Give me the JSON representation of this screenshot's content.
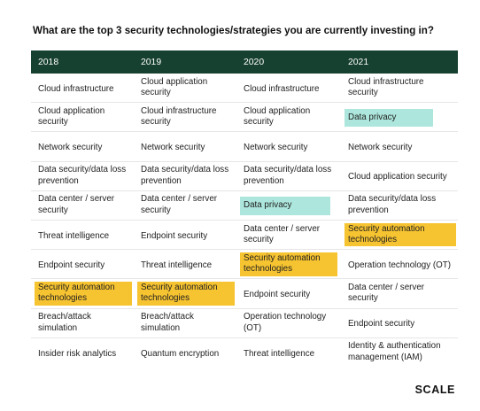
{
  "title": "What are the top 3 security technologies/strategies you are currently investing in?",
  "columns": [
    "2018",
    "2019",
    "2020",
    "2021"
  ],
  "rows": [
    [
      "Cloud infrastructure",
      "Cloud application security",
      "Cloud infrastructure",
      "Cloud infrastructure security"
    ],
    [
      "Cloud application security",
      "Cloud infrastructure security",
      "Cloud application security",
      "Data privacy"
    ],
    [
      "Network security",
      "Network security",
      "Network security",
      "Network security"
    ],
    [
      "Data security/data loss prevention",
      "Data security/data loss prevention",
      "Data security/data loss prevention",
      "Cloud application security"
    ],
    [
      "Data center / server security",
      "Data center / server security",
      "Data privacy",
      "Data security/data loss prevention"
    ],
    [
      "Threat intelligence",
      "Endpoint security",
      "Data center / server security",
      "Security automation technologies"
    ],
    [
      "Endpoint security",
      "Threat intelligence",
      "Security automation technologies",
      "Operation technology (OT)"
    ],
    [
      "Security automation technologies",
      "Security automation technologies",
      "Endpoint security",
      "Data center / server security"
    ],
    [
      "Breach/attack simulation",
      "Breach/attack simulation",
      "Operation technology (OT)",
      "Endpoint security"
    ],
    [
      "Insider risk analytics",
      "Quantum encryption",
      "Threat intelligence",
      "Identity & authentication management (IAM)"
    ]
  ],
  "highlight_colors": {
    "security_automation": "#f6c331",
    "data_privacy": "#ade6dc",
    "header_bg": "#16402f"
  },
  "logo": "SCALE"
}
